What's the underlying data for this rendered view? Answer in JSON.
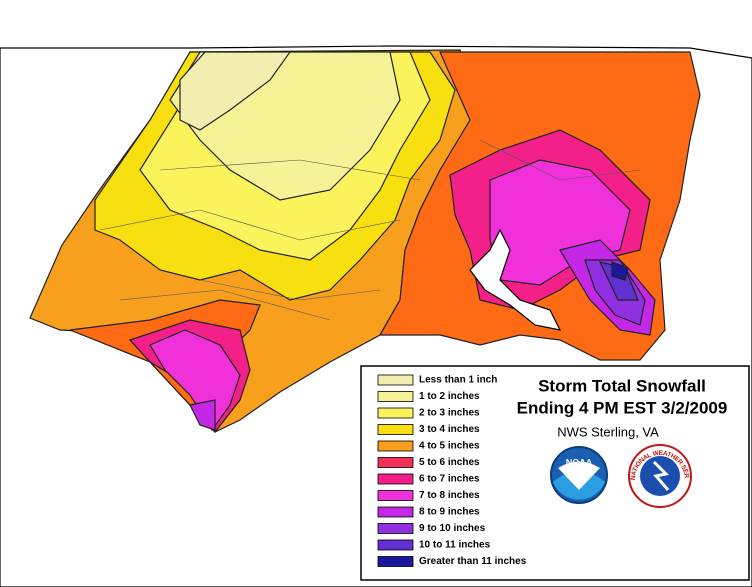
{
  "title": {
    "line1": "Storm Total Snowfall",
    "line2": "Ending 4 PM EST 3/2/2009"
  },
  "office": "NWS Sterling, VA",
  "logos": {
    "noaa": "NOAA",
    "nws": "NATIONAL WEATHER SERVICE"
  },
  "legend": {
    "items": [
      {
        "label": "Less than 1 inch",
        "color": "#f2eeb0"
      },
      {
        "label": "1 to 2 inches",
        "color": "#f6f296"
      },
      {
        "label": "2 to 3 inches",
        "color": "#fbf35c"
      },
      {
        "label": "3 to 4 inches",
        "color": "#f7df10"
      },
      {
        "label": "4 to 5 inches",
        "color": "#f8a01e"
      },
      {
        "label": "5 to 6 inches",
        "color": "#f2305a"
      },
      {
        "label": "6 to 7 inches",
        "color": "#f22088"
      },
      {
        "label": "7 to 8 inches",
        "color": "#f030d8"
      },
      {
        "label": "8 to 9 inches",
        "color": "#c428e6"
      },
      {
        "label": "9 to 10 inches",
        "color": "#9030e0"
      },
      {
        "label": "10 to 11 inches",
        "color": "#6030d0"
      },
      {
        "label": "Greater than 11 inches",
        "color": "#1c189c"
      }
    ]
  }
}
